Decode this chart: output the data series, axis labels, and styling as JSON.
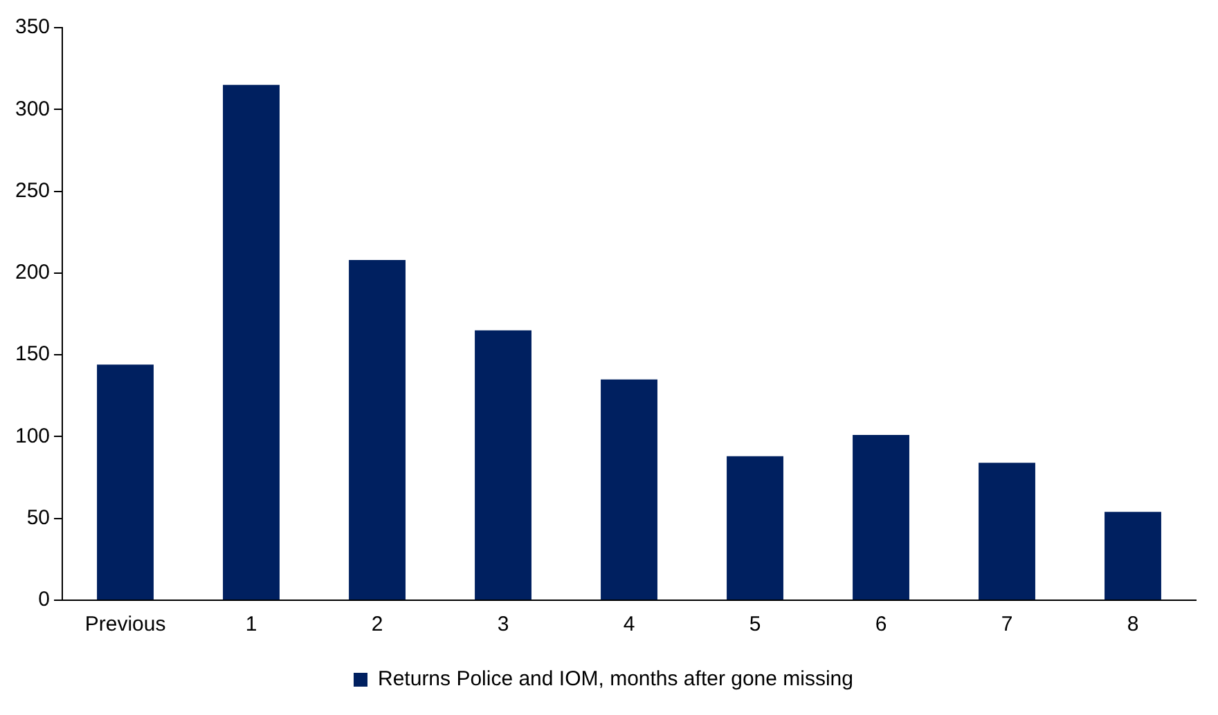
{
  "chart_data": {
    "type": "bar",
    "categories": [
      "Previous",
      "1",
      "2",
      "3",
      "4",
      "5",
      "6",
      "7",
      "8"
    ],
    "series": [
      {
        "name": "Returns Police and IOM, months after gone missing",
        "color": "#002060",
        "values": [
          144,
          315,
          208,
          165,
          135,
          88,
          101,
          84,
          54
        ]
      }
    ],
    "ylim": [
      0,
      350
    ],
    "yticks": [
      0,
      50,
      100,
      150,
      200,
      250,
      300,
      350
    ],
    "grid": false,
    "legend": "bottom"
  }
}
